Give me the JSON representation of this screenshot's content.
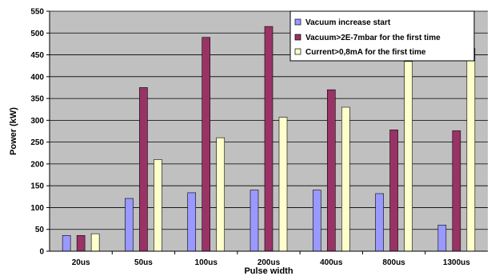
{
  "chart_data": {
    "type": "bar",
    "xlabel": "Pulse width",
    "ylabel": "Power (kW)",
    "ylim": [
      0,
      550
    ],
    "y_ticks": [
      "0",
      "50",
      "100",
      "150",
      "200",
      "250",
      "300",
      "350",
      "400",
      "450",
      "500",
      "550"
    ],
    "categories": [
      "20us",
      "50us",
      "100us",
      "200us",
      "400us",
      "800us",
      "1300us"
    ],
    "grid": true,
    "legend_position": "top-right",
    "series": [
      {
        "name": "Vacuum increase start",
        "color": "#9999ff",
        "values": [
          36,
          121,
          134,
          140,
          140,
          132,
          60
        ]
      },
      {
        "name": "Vacuum>2E-7mbar for the first time",
        "color": "#993366",
        "values": [
          36,
          375,
          490,
          515,
          370,
          278,
          276
        ]
      },
      {
        "name": "Current>0,8mA for the first time",
        "color": "#ffffcc",
        "values": [
          40,
          210,
          260,
          307,
          330,
          435,
          465
        ]
      }
    ]
  }
}
